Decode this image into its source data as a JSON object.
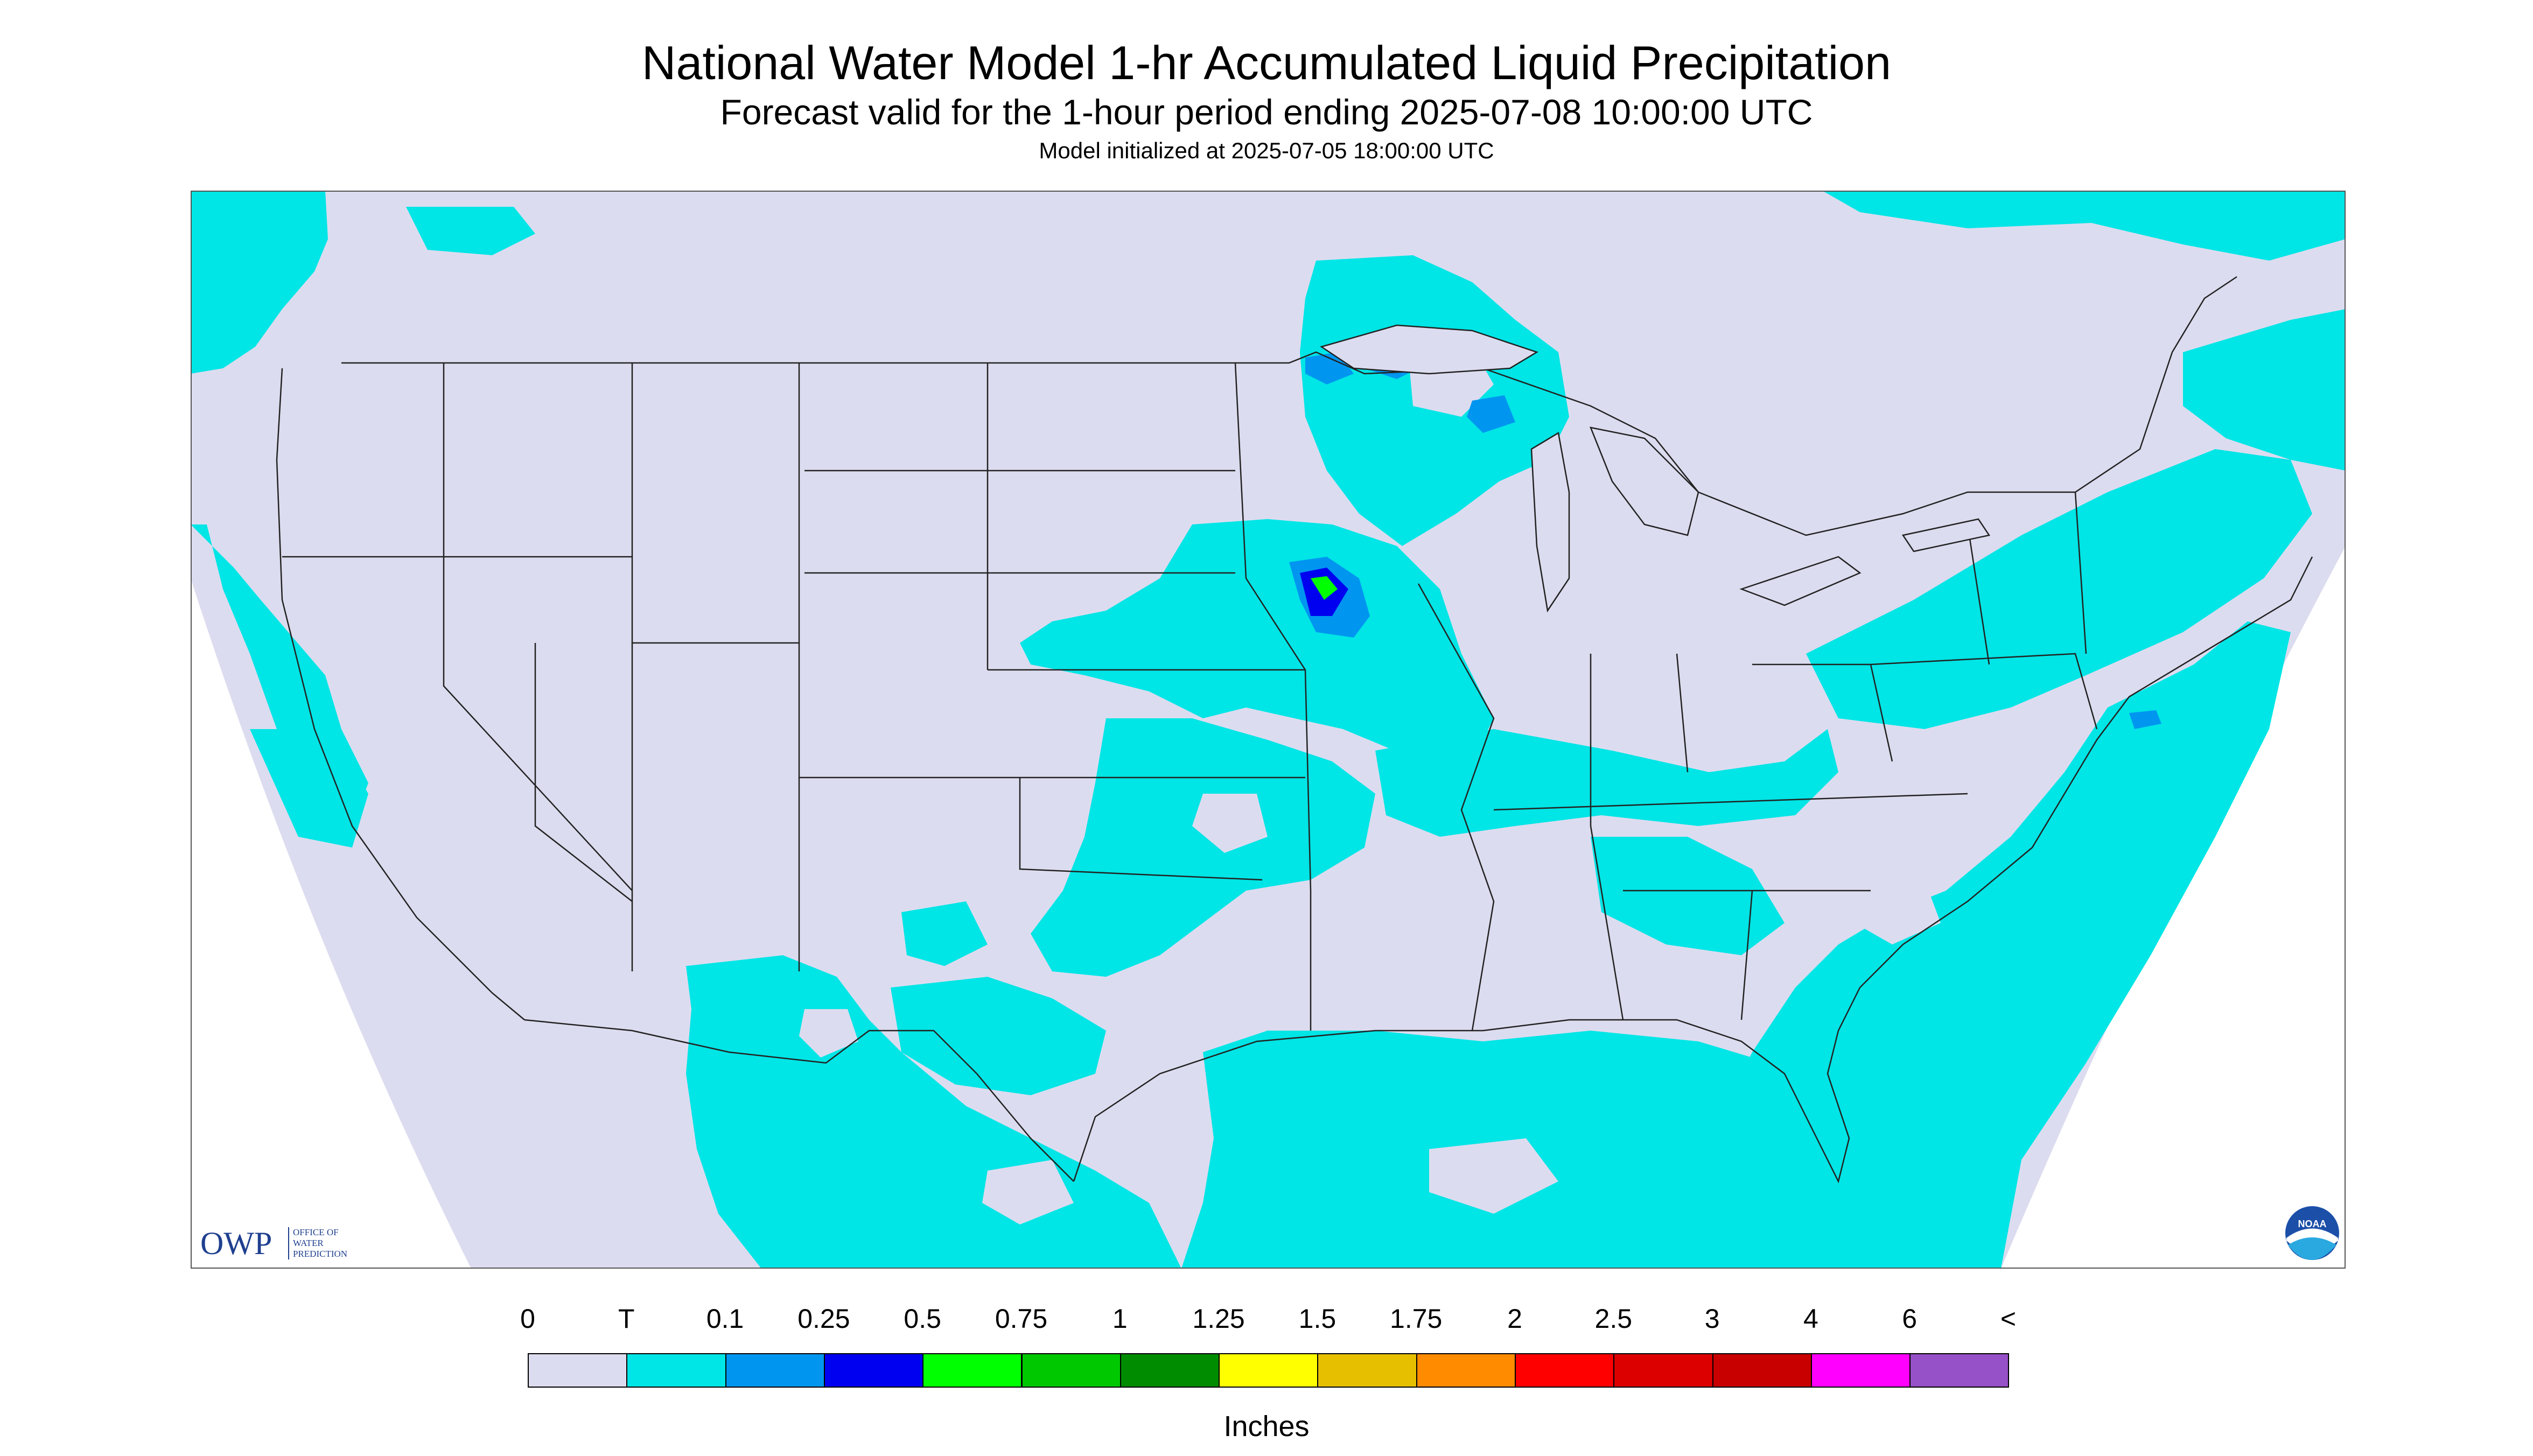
{
  "header": {
    "title": "National Water Model 1-hr Accumulated Liquid Precipitation",
    "subtitle": "Forecast valid for the 1-hour period ending 2025-07-08 10:00:00 UTC",
    "init": "Model initialized at 2025-07-05 18:00:00 UTC"
  },
  "logos": {
    "owp_mark": "OWP",
    "owp_text": [
      "OFFICE OF",
      "WATER",
      "PREDICTION"
    ],
    "noaa_text": "NOAA"
  },
  "legend": {
    "labels": [
      "0",
      "T",
      "0.1",
      "0.25",
      "0.5",
      "0.75",
      "1",
      "1.25",
      "1.5",
      "1.75",
      "2",
      "2.5",
      "3",
      "4",
      "6",
      "<"
    ],
    "colors": [
      "#dcdcf0",
      "#00e5e5",
      "#0096f0",
      "#0000f0",
      "#00ff00",
      "#00c800",
      "#008c00",
      "#ffff00",
      "#e6c000",
      "#ff8c00",
      "#ff0000",
      "#dc0000",
      "#c80000",
      "#ff00ff",
      "#9650c8"
    ],
    "units": "Inches"
  },
  "map": {
    "background_color": "#dcdcf0",
    "light_precip_color": "#00e5e5",
    "moderate_precip_color": "#0096f0"
  }
}
